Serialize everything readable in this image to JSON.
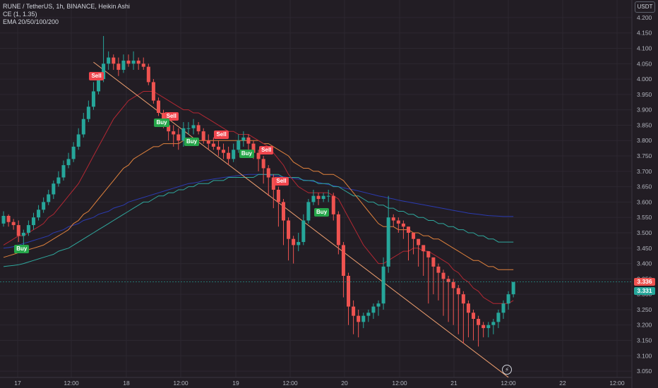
{
  "legend": {
    "line1": "RUNE / TetherUS, 1h, BINANCE, Heikin Ashi",
    "line2": "CE (1, 1.35)",
    "line3": "EMA 20/50/100/200"
  },
  "currency": "USDT",
  "price_tags": [
    {
      "label": "3.336",
      "color": "#ef5350"
    },
    {
      "label": "3.331",
      "color": "#26a69a"
    }
  ],
  "signals": [
    {
      "label": "Sell",
      "type": "sell"
    },
    {
      "label": "Buy",
      "type": "buy"
    },
    {
      "label": "Sell",
      "type": "sell"
    },
    {
      "label": "Buy",
      "type": "buy"
    },
    {
      "label": "Sell",
      "type": "sell"
    },
    {
      "label": "Buy",
      "type": "buy"
    },
    {
      "label": "Sell",
      "type": "sell"
    },
    {
      "label": "Buy",
      "type": "buy"
    },
    {
      "label": "Sell",
      "type": "sell"
    },
    {
      "label": "Buy",
      "type": "buy"
    }
  ],
  "chart_data": {
    "type": "candlestick",
    "style": "Heikin Ashi",
    "symbol": "RUNE / TetherUS",
    "interval": "1h",
    "exchange": "BINANCE",
    "ylim": [
      3.025,
      4.225
    ],
    "y_ticks": [
      "4.200",
      "4.150",
      "4.100",
      "4.050",
      "4.000",
      "3.950",
      "3.900",
      "3.850",
      "3.800",
      "3.750",
      "3.700",
      "3.650",
      "3.600",
      "3.550",
      "3.500",
      "3.450",
      "3.400",
      "3.350",
      "3.300",
      "3.250",
      "3.200",
      "3.150",
      "3.100",
      "3.050"
    ],
    "x_ticks": [
      "17",
      "12:00",
      "18",
      "12:00",
      "19",
      "12:00",
      "20",
      "12:00",
      "21",
      "12:00",
      "22",
      "12:00"
    ],
    "colors": {
      "up": "#26a69a",
      "down": "#ef5350",
      "ema20": "#b22833",
      "ema50": "#e0823d",
      "ema100": "#2fa89d",
      "ema200": "#2b3bb0",
      "trend": "#f0a070"
    },
    "candles_o": [
      3.53,
      3.555,
      3.535,
      3.525,
      3.49,
      3.5,
      3.525,
      3.55,
      3.575,
      3.6,
      3.625,
      3.66,
      3.68,
      3.72,
      3.74,
      3.78,
      3.82,
      3.87,
      3.91,
      3.96,
      4.0,
      4.05,
      4.07,
      4.05,
      4.03,
      4.06,
      4.05,
      4.06,
      4.05,
      4.04,
      3.99,
      3.93,
      3.89,
      3.85,
      3.83,
      3.82,
      3.8,
      3.84,
      3.84,
      3.85,
      3.83,
      3.8,
      3.79,
      3.78,
      3.77,
      3.76,
      3.74,
      3.77,
      3.8,
      3.81,
      3.79,
      3.76,
      3.74,
      3.71,
      3.68,
      3.64,
      3.6,
      3.54,
      3.48,
      3.46,
      3.47,
      3.54,
      3.6,
      3.62,
      3.61,
      3.62,
      3.62,
      3.56,
      3.46,
      3.36,
      3.26,
      3.23,
      3.21,
      3.23,
      3.24,
      3.26,
      3.27,
      3.39,
      3.55,
      3.54,
      3.53,
      3.52,
      3.5,
      3.48,
      3.46,
      3.44,
      3.42,
      3.39,
      3.37,
      3.35,
      3.34,
      3.32,
      3.3,
      3.27,
      3.24,
      3.22,
      3.2,
      3.19,
      3.2,
      3.21,
      3.24,
      3.27,
      3.3
    ],
    "candles_c": [
      3.555,
      3.535,
      3.525,
      3.49,
      3.5,
      3.525,
      3.55,
      3.575,
      3.6,
      3.625,
      3.66,
      3.68,
      3.72,
      3.74,
      3.78,
      3.82,
      3.87,
      3.91,
      3.96,
      4.0,
      4.05,
      4.07,
      4.05,
      4.03,
      4.06,
      4.05,
      4.06,
      4.05,
      4.04,
      3.99,
      3.93,
      3.89,
      3.85,
      3.83,
      3.82,
      3.8,
      3.84,
      3.84,
      3.85,
      3.83,
      3.8,
      3.79,
      3.78,
      3.77,
      3.76,
      3.74,
      3.77,
      3.8,
      3.81,
      3.79,
      3.76,
      3.74,
      3.71,
      3.68,
      3.64,
      3.6,
      3.54,
      3.48,
      3.46,
      3.47,
      3.54,
      3.6,
      3.62,
      3.61,
      3.62,
      3.62,
      3.56,
      3.46,
      3.36,
      3.26,
      3.23,
      3.21,
      3.23,
      3.24,
      3.26,
      3.27,
      3.39,
      3.55,
      3.54,
      3.53,
      3.52,
      3.5,
      3.48,
      3.46,
      3.44,
      3.42,
      3.39,
      3.37,
      3.35,
      3.34,
      3.32,
      3.3,
      3.27,
      3.24,
      3.22,
      3.2,
      3.19,
      3.2,
      3.21,
      3.24,
      3.27,
      3.3,
      3.34
    ],
    "candles_h": [
      3.57,
      3.56,
      3.545,
      3.54,
      3.51,
      3.54,
      3.565,
      3.59,
      3.615,
      3.64,
      3.67,
      3.7,
      3.735,
      3.76,
      3.795,
      3.84,
      3.89,
      3.93,
      3.99,
      4.02,
      4.14,
      4.09,
      4.08,
      4.07,
      4.08,
      4.08,
      4.09,
      4.07,
      4.07,
      4.05,
      4.0,
      3.94,
      3.9,
      3.86,
      3.85,
      3.84,
      3.86,
      3.86,
      3.87,
      3.86,
      3.84,
      3.82,
      3.81,
      3.8,
      3.79,
      3.78,
      3.79,
      3.82,
      3.83,
      3.82,
      3.8,
      3.77,
      3.75,
      3.72,
      3.69,
      3.65,
      3.61,
      3.55,
      3.49,
      3.5,
      3.56,
      3.61,
      3.64,
      3.63,
      3.63,
      3.64,
      3.63,
      3.57,
      3.47,
      3.37,
      3.28,
      3.25,
      3.24,
      3.25,
      3.27,
      3.28,
      3.42,
      3.62,
      3.56,
      3.55,
      3.54,
      3.52,
      3.5,
      3.48,
      3.46,
      3.44,
      3.42,
      3.4,
      3.38,
      3.36,
      3.35,
      3.33,
      3.31,
      3.28,
      3.25,
      3.23,
      3.21,
      3.21,
      3.22,
      3.25,
      3.28,
      3.31,
      3.34
    ],
    "candles_l": [
      3.52,
      3.52,
      3.51,
      3.47,
      3.46,
      3.49,
      3.51,
      3.54,
      3.565,
      3.59,
      3.61,
      3.65,
      3.67,
      3.71,
      3.73,
      3.77,
      3.81,
      3.86,
      3.9,
      3.95,
      3.99,
      4.03,
      4.03,
      4.01,
      4.02,
      4.04,
      4.03,
      4.03,
      4.03,
      3.98,
      3.92,
      3.88,
      3.84,
      3.8,
      3.78,
      3.77,
      3.78,
      3.82,
      3.82,
      3.82,
      3.79,
      3.77,
      3.77,
      3.75,
      3.74,
      3.72,
      3.73,
      3.76,
      3.78,
      3.77,
      3.74,
      3.7,
      3.66,
      3.62,
      3.58,
      3.52,
      3.46,
      3.41,
      3.4,
      3.44,
      3.46,
      3.53,
      3.59,
      3.59,
      3.6,
      3.6,
      3.54,
      3.43,
      3.29,
      3.2,
      3.17,
      3.16,
      3.19,
      3.21,
      3.22,
      3.23,
      3.25,
      3.37,
      3.52,
      3.5,
      3.48,
      3.41,
      3.43,
      3.39,
      3.36,
      3.27,
      3.3,
      3.28,
      3.23,
      3.21,
      3.2,
      3.17,
      3.14,
      3.16,
      3.15,
      3.13,
      3.16,
      3.16,
      3.17,
      3.19,
      3.22,
      3.25,
      3.29
    ],
    "ema20": [
      3.46,
      3.47,
      3.48,
      3.49,
      3.49,
      3.5,
      3.51,
      3.52,
      3.53,
      3.55,
      3.56,
      3.58,
      3.6,
      3.62,
      3.64,
      3.66,
      3.69,
      3.72,
      3.75,
      3.78,
      3.81,
      3.84,
      3.87,
      3.89,
      3.91,
      3.93,
      3.94,
      3.95,
      3.96,
      3.96,
      3.96,
      3.95,
      3.94,
      3.93,
      3.92,
      3.91,
      3.9,
      3.9,
      3.89,
      3.89,
      3.88,
      3.87,
      3.86,
      3.85,
      3.84,
      3.83,
      3.83,
      3.82,
      3.82,
      3.82,
      3.81,
      3.8,
      3.79,
      3.78,
      3.76,
      3.74,
      3.72,
      3.69,
      3.67,
      3.65,
      3.64,
      3.63,
      3.63,
      3.63,
      3.63,
      3.63,
      3.62,
      3.61,
      3.58,
      3.55,
      3.52,
      3.49,
      3.46,
      3.44,
      3.42,
      3.4,
      3.4,
      3.41,
      3.42,
      3.43,
      3.44,
      3.44,
      3.45,
      3.45,
      3.44,
      3.44,
      3.43,
      3.42,
      3.41,
      3.4,
      3.38,
      3.37,
      3.35,
      3.34,
      3.32,
      3.31,
      3.29,
      3.28,
      3.27,
      3.27,
      3.27,
      3.27,
      3.28
    ],
    "ema50": [
      3.42,
      3.425,
      3.43,
      3.435,
      3.44,
      3.445,
      3.45,
      3.455,
      3.46,
      3.47,
      3.48,
      3.49,
      3.5,
      3.51,
      3.53,
      3.54,
      3.56,
      3.57,
      3.59,
      3.61,
      3.63,
      3.65,
      3.67,
      3.69,
      3.71,
      3.72,
      3.74,
      3.75,
      3.76,
      3.77,
      3.78,
      3.78,
      3.79,
      3.79,
      3.79,
      3.79,
      3.8,
      3.8,
      3.8,
      3.8,
      3.8,
      3.8,
      3.8,
      3.8,
      3.8,
      3.8,
      3.8,
      3.8,
      3.8,
      3.8,
      3.8,
      3.8,
      3.79,
      3.79,
      3.78,
      3.77,
      3.76,
      3.75,
      3.73,
      3.72,
      3.71,
      3.71,
      3.7,
      3.7,
      3.69,
      3.69,
      3.69,
      3.68,
      3.67,
      3.65,
      3.63,
      3.61,
      3.59,
      3.57,
      3.55,
      3.53,
      3.52,
      3.52,
      3.52,
      3.51,
      3.51,
      3.51,
      3.5,
      3.5,
      3.49,
      3.49,
      3.48,
      3.48,
      3.47,
      3.46,
      3.45,
      3.44,
      3.43,
      3.42,
      3.41,
      3.41,
      3.4,
      3.39,
      3.39,
      3.38,
      3.38,
      3.38,
      3.38
    ],
    "ema100": [
      3.39,
      3.392,
      3.394,
      3.396,
      3.4,
      3.405,
      3.41,
      3.415,
      3.42,
      3.425,
      3.43,
      3.44,
      3.445,
      3.45,
      3.46,
      3.47,
      3.48,
      3.49,
      3.5,
      3.51,
      3.52,
      3.53,
      3.54,
      3.55,
      3.56,
      3.57,
      3.58,
      3.59,
      3.6,
      3.6,
      3.61,
      3.62,
      3.62,
      3.63,
      3.63,
      3.64,
      3.64,
      3.65,
      3.65,
      3.66,
      3.66,
      3.66,
      3.67,
      3.67,
      3.67,
      3.68,
      3.68,
      3.68,
      3.68,
      3.68,
      3.68,
      3.69,
      3.69,
      3.69,
      3.69,
      3.69,
      3.68,
      3.68,
      3.68,
      3.68,
      3.67,
      3.67,
      3.67,
      3.66,
      3.66,
      3.66,
      3.65,
      3.65,
      3.64,
      3.63,
      3.62,
      3.62,
      3.61,
      3.6,
      3.6,
      3.59,
      3.59,
      3.58,
      3.58,
      3.57,
      3.57,
      3.56,
      3.56,
      3.55,
      3.55,
      3.54,
      3.54,
      3.53,
      3.53,
      3.52,
      3.52,
      3.51,
      3.51,
      3.5,
      3.5,
      3.49,
      3.49,
      3.48,
      3.48,
      3.47,
      3.47,
      3.47,
      3.47
    ],
    "ema200": [
      3.45,
      3.452,
      3.455,
      3.46,
      3.465,
      3.47,
      3.475,
      3.48,
      3.485,
      3.49,
      3.5,
      3.505,
      3.51,
      3.52,
      3.525,
      3.53,
      3.54,
      3.545,
      3.55,
      3.56,
      3.565,
      3.57,
      3.58,
      3.585,
      3.59,
      3.6,
      3.605,
      3.61,
      3.615,
      3.62,
      3.625,
      3.63,
      3.635,
      3.64,
      3.645,
      3.65,
      3.655,
      3.66,
      3.662,
      3.665,
      3.67,
      3.672,
      3.675,
      3.677,
      3.68,
      3.682,
      3.684,
      3.686,
      3.688,
      3.69,
      3.69,
      3.69,
      3.69,
      3.688,
      3.686,
      3.684,
      3.682,
      3.68,
      3.677,
      3.675,
      3.672,
      3.67,
      3.667,
      3.664,
      3.66,
      3.657,
      3.653,
      3.65,
      3.646,
      3.643,
      3.64,
      3.636,
      3.632,
      3.628,
      3.624,
      3.62,
      3.617,
      3.613,
      3.61,
      3.606,
      3.603,
      3.6,
      3.597,
      3.594,
      3.591,
      3.588,
      3.585,
      3.582,
      3.579,
      3.576,
      3.573,
      3.57,
      3.567,
      3.564,
      3.562,
      3.56,
      3.558,
      3.556,
      3.555,
      3.554,
      3.553,
      3.553,
      3.553
    ],
    "trend_line": [
      [
        18,
        4.055
      ],
      [
        101,
        3.03
      ]
    ],
    "signal_bars": [
      18,
      3,
      33,
      31,
      43,
      37,
      52,
      48,
      55,
      63
    ]
  }
}
